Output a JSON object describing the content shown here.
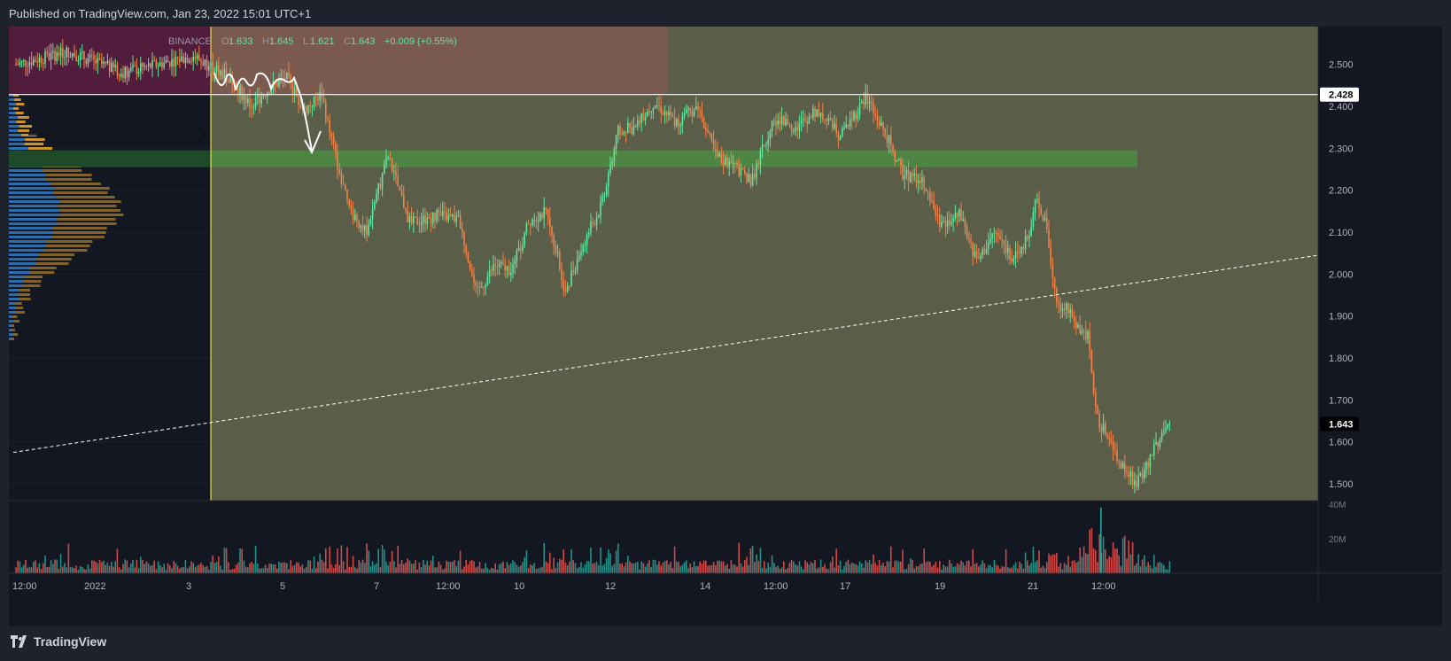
{
  "header": {
    "published": "Published on TradingView.com, Jan 23, 2022 15:01 UTC+1"
  },
  "legend": {
    "exchange": "BINANCE",
    "open_label": "O",
    "open": "1.633",
    "high_label": "H",
    "high": "1.645",
    "low_label": "L",
    "low": "1.621",
    "close_label": "C",
    "close": "1.643",
    "change": "+0.009 (+0.55%)"
  },
  "footer": {
    "brand": "TradingView",
    "logo_icon": "tradingview-logo-icon"
  },
  "colors": {
    "up": "#26a69a",
    "down": "#ef5350",
    "bull_candle": "#5ee6a0",
    "bear_candle": "#f0824a",
    "background": "#131722",
    "zone_olive": "#5a5e48",
    "zone_red": "#7a5a4f",
    "zone_pink": "#521c3c",
    "zone_green": "#4e8a44",
    "yellow_line": "#e8e04a",
    "vp_blue": "#2b6cb0",
    "vp_orange": "#e0a030"
  },
  "chart_data": {
    "type": "candlestick",
    "symbol_exchange": "BINANCE",
    "y_axis": {
      "ticks": [
        2.5,
        2.4,
        2.3,
        2.2,
        2.1,
        2.0,
        1.9,
        1.8,
        1.7,
        1.6,
        1.5
      ],
      "tick_labels": [
        "2.500",
        "2.400",
        "2.300",
        "2.200",
        "2.100",
        "2.000",
        "1.900",
        "1.800",
        "1.700",
        "1.600",
        "1.500"
      ],
      "range": [
        1.46,
        2.59
      ]
    },
    "x_axis": {
      "tick_labels": [
        "12:00",
        "2022",
        "3",
        "5",
        "7",
        "12:00",
        "10",
        "12",
        "14",
        "12:00",
        "17",
        "19",
        "21",
        "12:00"
      ]
    },
    "price_labels": [
      {
        "value": 2.428,
        "label": "2.428",
        "role": "horizontal-line"
      },
      {
        "value": 1.643,
        "label": "1.643",
        "role": "last-price"
      }
    ],
    "volume_axis": {
      "tick_labels": [
        "40M",
        "20M"
      ],
      "ticks": [
        40,
        20
      ],
      "max": 42
    },
    "zones": [
      {
        "name": "analysis-zone",
        "y_from": 1.46,
        "y_to": 2.59
      },
      {
        "name": "upper-red-zone",
        "y_from": 2.428,
        "y_to": 2.59
      },
      {
        "name": "support-green-band",
        "y_from": 2.255,
        "y_to": 2.295
      }
    ],
    "trendline": {
      "style": "dashed",
      "start_price": 1.575,
      "end_price": 2.045
    },
    "price_path": [
      {
        "t": 0,
        "p": 2.5
      },
      {
        "t": 60,
        "p": 2.53
      },
      {
        "t": 120,
        "p": 2.48
      },
      {
        "t": 200,
        "p": 2.52
      },
      {
        "t": 232,
        "p": 2.48
      },
      {
        "t": 245,
        "p": 2.46
      },
      {
        "t": 265,
        "p": 2.4
      },
      {
        "t": 285,
        "p": 2.44
      },
      {
        "t": 305,
        "p": 2.47
      },
      {
        "t": 325,
        "p": 2.39
      },
      {
        "t": 345,
        "p": 2.43
      },
      {
        "t": 362,
        "p": 2.27
      },
      {
        "t": 375,
        "p": 2.16
      },
      {
        "t": 395,
        "p": 2.1
      },
      {
        "t": 420,
        "p": 2.28
      },
      {
        "t": 445,
        "p": 2.12
      },
      {
        "t": 475,
        "p": 2.14
      },
      {
        "t": 500,
        "p": 2.13
      },
      {
        "t": 520,
        "p": 1.95
      },
      {
        "t": 540,
        "p": 2.02
      },
      {
        "t": 560,
        "p": 2.01
      },
      {
        "t": 580,
        "p": 2.13
      },
      {
        "t": 600,
        "p": 2.15
      },
      {
        "t": 620,
        "p": 1.96
      },
      {
        "t": 640,
        "p": 2.07
      },
      {
        "t": 660,
        "p": 2.16
      },
      {
        "t": 680,
        "p": 2.34
      },
      {
        "t": 700,
        "p": 2.35
      },
      {
        "t": 720,
        "p": 2.41
      },
      {
        "t": 745,
        "p": 2.36
      },
      {
        "t": 770,
        "p": 2.4
      },
      {
        "t": 790,
        "p": 2.28
      },
      {
        "t": 810,
        "p": 2.26
      },
      {
        "t": 830,
        "p": 2.22
      },
      {
        "t": 855,
        "p": 2.37
      },
      {
        "t": 880,
        "p": 2.35
      },
      {
        "t": 905,
        "p": 2.39
      },
      {
        "t": 930,
        "p": 2.33
      },
      {
        "t": 960,
        "p": 2.42
      },
      {
        "t": 985,
        "p": 2.32
      },
      {
        "t": 1000,
        "p": 2.24
      },
      {
        "t": 1025,
        "p": 2.22
      },
      {
        "t": 1045,
        "p": 2.11
      },
      {
        "t": 1065,
        "p": 2.14
      },
      {
        "t": 1085,
        "p": 2.03
      },
      {
        "t": 1105,
        "p": 2.1
      },
      {
        "t": 1125,
        "p": 2.04
      },
      {
        "t": 1145,
        "p": 2.09
      },
      {
        "t": 1152,
        "p": 2.18
      },
      {
        "t": 1162,
        "p": 2.12
      },
      {
        "t": 1175,
        "p": 1.92
      },
      {
        "t": 1185,
        "p": 1.93
      },
      {
        "t": 1195,
        "p": 1.88
      },
      {
        "t": 1210,
        "p": 1.85
      },
      {
        "t": 1220,
        "p": 1.66
      },
      {
        "t": 1235,
        "p": 1.6
      },
      {
        "t": 1250,
        "p": 1.54
      },
      {
        "t": 1265,
        "p": 1.5
      },
      {
        "t": 1280,
        "p": 1.56
      },
      {
        "t": 1295,
        "p": 1.63
      },
      {
        "t": 1303,
        "p": 1.643
      }
    ]
  }
}
